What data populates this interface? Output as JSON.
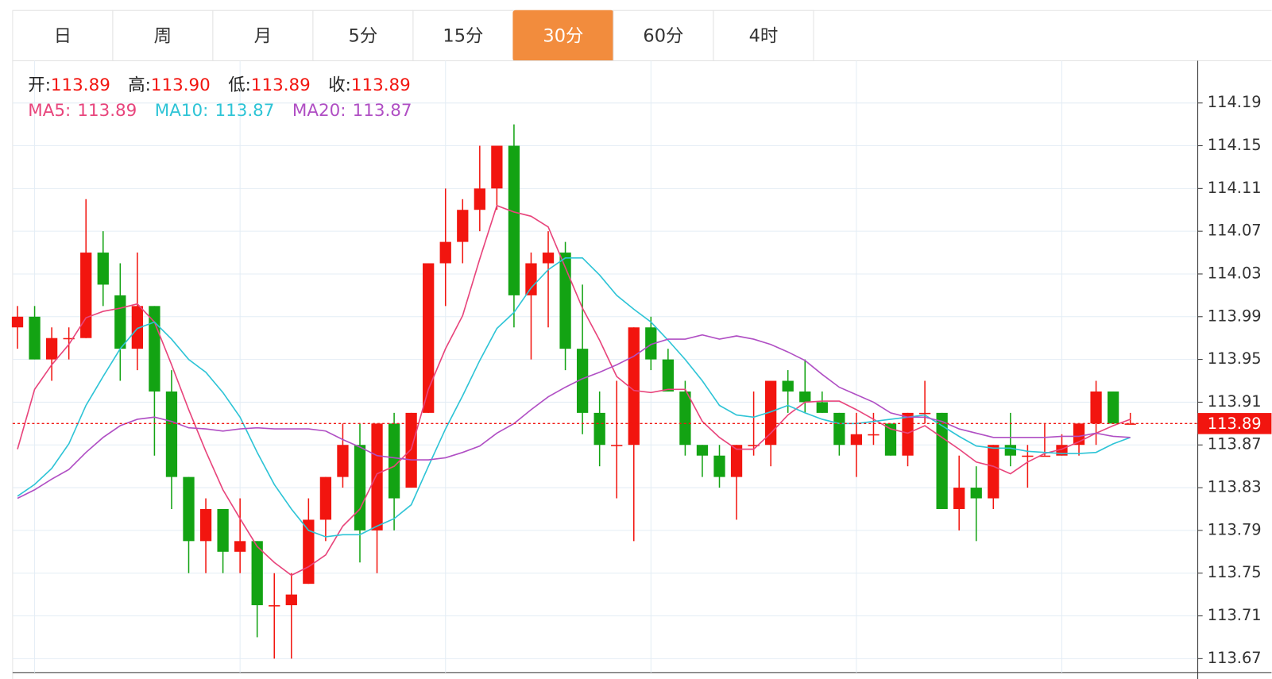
{
  "tabs": {
    "items": [
      "日",
      "周",
      "月",
      "5分",
      "15分",
      "30分",
      "60分",
      "4时"
    ],
    "active": 5,
    "active_color": "#f28c3d"
  },
  "chart_data": {
    "type": "candlestick",
    "info": [
      {
        "label": "开:",
        "value": "113.89"
      },
      {
        "label": "高:",
        "value": "113.90"
      },
      {
        "label": "低:",
        "value": "113.89"
      },
      {
        "label": "收:",
        "value": "113.89"
      }
    ],
    "up_color": "#f2150f",
    "down_color": "#13a313",
    "ylim": [
      113.657,
      114.228
    ],
    "yticks": [
      114.19,
      114.15,
      114.11,
      114.07,
      114.03,
      113.99,
      113.95,
      113.91,
      113.87,
      113.83,
      113.79,
      113.75,
      113.71,
      113.67
    ],
    "grid": true,
    "last_price": 113.89,
    "candles": {
      "open": [
        113.98,
        113.99,
        113.95,
        113.97,
        113.97,
        114.05,
        114.01,
        113.96,
        114.0,
        113.92,
        113.84,
        113.78,
        113.81,
        113.77,
        113.78,
        113.72,
        113.72,
        113.74,
        113.8,
        113.84,
        113.87,
        113.79,
        113.89,
        113.83,
        113.9,
        114.04,
        114.06,
        114.09,
        114.11,
        114.15,
        114.01,
        114.04,
        114.05,
        113.96,
        113.9,
        113.87,
        113.87,
        113.98,
        113.95,
        113.92,
        113.87,
        113.86,
        113.84,
        113.87,
        113.87,
        113.93,
        113.92,
        113.91,
        113.9,
        113.87,
        113.88,
        113.89,
        113.86,
        113.9,
        113.9,
        113.81,
        113.83,
        113.82,
        113.87,
        113.86,
        113.86,
        113.86,
        113.87,
        113.89,
        113.92,
        113.89
      ],
      "high": [
        114.0,
        114.0,
        113.98,
        113.98,
        114.1,
        114.07,
        114.04,
        114.05,
        114.0,
        113.94,
        113.84,
        113.82,
        113.81,
        113.82,
        113.78,
        113.75,
        113.75,
        113.82,
        113.84,
        113.89,
        113.89,
        113.89,
        113.9,
        113.9,
        114.04,
        114.11,
        114.1,
        114.15,
        114.15,
        114.17,
        114.05,
        114.07,
        114.06,
        114.02,
        113.92,
        113.93,
        113.98,
        113.99,
        113.96,
        113.93,
        113.87,
        113.87,
        113.87,
        113.92,
        113.93,
        113.94,
        113.95,
        113.92,
        113.9,
        113.9,
        113.9,
        113.89,
        113.9,
        113.93,
        113.9,
        113.86,
        113.85,
        113.87,
        113.9,
        113.87,
        113.89,
        113.88,
        113.89,
        113.93,
        113.92,
        113.9
      ],
      "low": [
        113.96,
        113.95,
        113.93,
        113.95,
        113.97,
        114.0,
        113.93,
        113.94,
        113.86,
        113.81,
        113.75,
        113.75,
        113.75,
        113.75,
        113.69,
        113.67,
        113.67,
        113.74,
        113.78,
        113.83,
        113.76,
        113.75,
        113.79,
        113.83,
        113.9,
        114.0,
        114.04,
        114.07,
        114.09,
        113.98,
        113.95,
        113.98,
        113.94,
        113.88,
        113.85,
        113.82,
        113.78,
        113.94,
        113.92,
        113.86,
        113.84,
        113.83,
        113.8,
        113.86,
        113.85,
        113.9,
        113.9,
        113.9,
        113.86,
        113.84,
        113.87,
        113.86,
        113.85,
        113.89,
        113.81,
        113.79,
        113.78,
        113.81,
        113.85,
        113.83,
        113.86,
        113.86,
        113.86,
        113.87,
        113.89,
        113.89
      ],
      "close": [
        113.99,
        113.95,
        113.97,
        113.97,
        114.05,
        114.02,
        113.96,
        114.0,
        113.92,
        113.84,
        113.78,
        113.81,
        113.77,
        113.78,
        113.72,
        113.72,
        113.73,
        113.8,
        113.84,
        113.87,
        113.79,
        113.89,
        113.82,
        113.9,
        114.04,
        114.06,
        114.09,
        114.11,
        114.15,
        114.01,
        114.04,
        114.05,
        113.96,
        113.9,
        113.87,
        113.87,
        113.98,
        113.95,
        113.92,
        113.87,
        113.86,
        113.84,
        113.87,
        113.87,
        113.93,
        113.92,
        113.91,
        113.9,
        113.87,
        113.88,
        113.88,
        113.86,
        113.9,
        113.9,
        113.81,
        113.83,
        113.82,
        113.87,
        113.86,
        113.86,
        113.86,
        113.87,
        113.89,
        113.92,
        113.89,
        113.89
      ]
    },
    "series": [
      {
        "name": "MA5:",
        "last": "113.89",
        "color": "#e8457c",
        "values": [
          113.866,
          113.922,
          113.945,
          113.964,
          113.989,
          113.995,
          113.998,
          114.002,
          113.985,
          113.945,
          113.903,
          113.864,
          113.828,
          113.801,
          113.775,
          113.76,
          113.748,
          113.756,
          113.767,
          113.794,
          113.81,
          113.843,
          113.85,
          113.866,
          113.922,
          113.96,
          113.991,
          114.044,
          114.094,
          114.088,
          114.084,
          114.074,
          114.036,
          113.998,
          113.968,
          113.934,
          113.921,
          113.919,
          113.922,
          113.922,
          113.892,
          113.877,
          113.866,
          113.866,
          113.881,
          113.898,
          113.91,
          113.911,
          113.911,
          113.903,
          113.894,
          113.885,
          113.881,
          113.888,
          113.877,
          113.866,
          113.854,
          113.85,
          113.843,
          113.854,
          113.862,
          113.866,
          113.873,
          113.881,
          113.888,
          113.894
        ]
      },
      {
        "name": "MA10:",
        "last": "113.87",
        "color": "#2ec4d6",
        "values": [
          113.822,
          113.833,
          113.848,
          113.871,
          113.907,
          113.934,
          113.96,
          113.979,
          113.985,
          113.969,
          113.95,
          113.938,
          113.919,
          113.896,
          113.863,
          113.833,
          113.81,
          113.79,
          113.784,
          113.786,
          113.786,
          113.794,
          113.801,
          113.814,
          113.85,
          113.885,
          113.916,
          113.949,
          113.979,
          113.994,
          114.017,
          114.034,
          114.045,
          114.045,
          114.029,
          114.01,
          113.997,
          113.985,
          113.968,
          113.95,
          113.93,
          113.907,
          113.898,
          113.896,
          113.901,
          113.907,
          113.9,
          113.894,
          113.89,
          113.89,
          113.892,
          113.894,
          113.896,
          113.898,
          113.888,
          113.878,
          113.869,
          113.867,
          113.867,
          113.864,
          113.863,
          113.862,
          113.862,
          113.863,
          113.871,
          113.877
        ]
      },
      {
        "name": "MA20:",
        "last": "113.87",
        "color": "#b04fc4",
        "values": [
          113.82,
          113.828,
          113.838,
          113.847,
          113.863,
          113.877,
          113.888,
          113.894,
          113.896,
          113.892,
          113.886,
          113.885,
          113.883,
          113.885,
          113.886,
          113.885,
          113.885,
          113.885,
          113.883,
          113.875,
          113.868,
          113.86,
          113.858,
          113.856,
          113.856,
          113.858,
          113.863,
          113.869,
          113.881,
          113.89,
          113.903,
          113.915,
          113.924,
          113.932,
          113.938,
          113.945,
          113.953,
          113.964,
          113.969,
          113.969,
          113.973,
          113.969,
          113.972,
          113.969,
          113.964,
          113.957,
          113.949,
          113.936,
          113.924,
          113.917,
          113.91,
          113.9,
          113.896,
          113.896,
          113.892,
          113.885,
          113.881,
          113.877,
          113.877,
          113.877,
          113.877,
          113.878,
          113.878,
          113.881,
          113.878,
          113.877
        ]
      }
    ]
  }
}
